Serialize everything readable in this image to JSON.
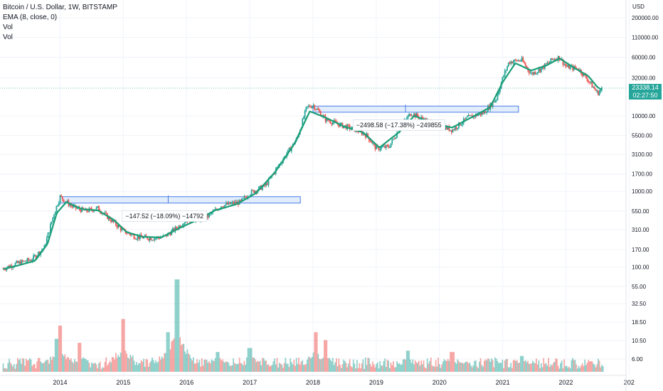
{
  "chart_data": {
    "type": "candlestick",
    "title": "Bitcoin / U.S. Dollar, 1W, BITSTAMP",
    "currency_label": "USD",
    "indicators": [
      "EMA (8, close, 0)",
      "Vol",
      "Vol"
    ],
    "price_axis_scale": "log",
    "price_ticks": [
      "200000.00",
      "110000.00",
      "60000.00",
      "32000.00",
      "10000.00",
      "5500.00",
      "3100.00",
      "1700.00",
      "1000.00",
      "550.00",
      "310.00",
      "170.00",
      "100.00",
      "55.00",
      "32.50",
      "18.50",
      "10.50",
      "6.00"
    ],
    "time_ticks": [
      "2014",
      "2015",
      "2016",
      "2017",
      "2018",
      "2019",
      "2020",
      "2021",
      "2022",
      "202"
    ],
    "last_price": "23338.14",
    "countdown": "02:27:50",
    "price_path": [
      {
        "t": 2013.1,
        "p": 95
      },
      {
        "t": 2013.3,
        "p": 110
      },
      {
        "t": 2013.55,
        "p": 125
      },
      {
        "t": 2013.75,
        "p": 180
      },
      {
        "t": 2013.9,
        "p": 500
      },
      {
        "t": 2014.0,
        "p": 850
      },
      {
        "t": 2014.2,
        "p": 620
      },
      {
        "t": 2014.4,
        "p": 550
      },
      {
        "t": 2014.6,
        "p": 600
      },
      {
        "t": 2014.8,
        "p": 420
      },
      {
        "t": 2015.0,
        "p": 300
      },
      {
        "t": 2015.2,
        "p": 250
      },
      {
        "t": 2015.45,
        "p": 240
      },
      {
        "t": 2015.65,
        "p": 250
      },
      {
        "t": 2015.85,
        "p": 330
      },
      {
        "t": 2016.0,
        "p": 420
      },
      {
        "t": 2016.3,
        "p": 440
      },
      {
        "t": 2016.55,
        "p": 650
      },
      {
        "t": 2016.85,
        "p": 720
      },
      {
        "t": 2017.0,
        "p": 950
      },
      {
        "t": 2017.25,
        "p": 1200
      },
      {
        "t": 2017.5,
        "p": 2500
      },
      {
        "t": 2017.75,
        "p": 5000
      },
      {
        "t": 2017.9,
        "p": 13000
      },
      {
        "t": 2018.0,
        "p": 14000
      },
      {
        "t": 2018.2,
        "p": 9000
      },
      {
        "t": 2018.45,
        "p": 7500
      },
      {
        "t": 2018.7,
        "p": 6500
      },
      {
        "t": 2018.85,
        "p": 5500
      },
      {
        "t": 2019.0,
        "p": 3700
      },
      {
        "t": 2019.2,
        "p": 3900
      },
      {
        "t": 2019.4,
        "p": 7500
      },
      {
        "t": 2019.55,
        "p": 11000
      },
      {
        "t": 2019.8,
        "p": 8500
      },
      {
        "t": 2020.0,
        "p": 7500
      },
      {
        "t": 2020.2,
        "p": 6500
      },
      {
        "t": 2020.45,
        "p": 9500
      },
      {
        "t": 2020.7,
        "p": 11000
      },
      {
        "t": 2020.9,
        "p": 17000
      },
      {
        "t": 2021.0,
        "p": 32000
      },
      {
        "t": 2021.1,
        "p": 52000
      },
      {
        "t": 2021.3,
        "p": 55000
      },
      {
        "t": 2021.45,
        "p": 36000
      },
      {
        "t": 2021.6,
        "p": 42000
      },
      {
        "t": 2021.8,
        "p": 57000
      },
      {
        "t": 2021.9,
        "p": 60000
      },
      {
        "t": 2022.0,
        "p": 45000
      },
      {
        "t": 2022.2,
        "p": 42000
      },
      {
        "t": 2022.35,
        "p": 30000
      },
      {
        "t": 2022.5,
        "p": 20000
      },
      {
        "t": 2022.58,
        "p": 23338
      }
    ],
    "ema_path": [
      {
        "t": 2013.1,
        "p": 93
      },
      {
        "t": 2013.35,
        "p": 105
      },
      {
        "t": 2013.6,
        "p": 120
      },
      {
        "t": 2013.8,
        "p": 200
      },
      {
        "t": 2013.95,
        "p": 520
      },
      {
        "t": 2014.1,
        "p": 720
      },
      {
        "t": 2014.35,
        "p": 580
      },
      {
        "t": 2014.6,
        "p": 560
      },
      {
        "t": 2014.85,
        "p": 420
      },
      {
        "t": 2015.05,
        "p": 290
      },
      {
        "t": 2015.3,
        "p": 250
      },
      {
        "t": 2015.6,
        "p": 245
      },
      {
        "t": 2015.9,
        "p": 330
      },
      {
        "t": 2016.15,
        "p": 410
      },
      {
        "t": 2016.45,
        "p": 560
      },
      {
        "t": 2016.8,
        "p": 680
      },
      {
        "t": 2017.1,
        "p": 950
      },
      {
        "t": 2017.4,
        "p": 1800
      },
      {
        "t": 2017.7,
        "p": 4200
      },
      {
        "t": 2017.95,
        "p": 11500
      },
      {
        "t": 2018.2,
        "p": 9500
      },
      {
        "t": 2018.5,
        "p": 7200
      },
      {
        "t": 2018.8,
        "p": 6000
      },
      {
        "t": 2019.05,
        "p": 3800
      },
      {
        "t": 2019.35,
        "p": 6000
      },
      {
        "t": 2019.6,
        "p": 10000
      },
      {
        "t": 2019.9,
        "p": 8000
      },
      {
        "t": 2020.2,
        "p": 7000
      },
      {
        "t": 2020.5,
        "p": 9500
      },
      {
        "t": 2020.8,
        "p": 13000
      },
      {
        "t": 2021.0,
        "p": 28000
      },
      {
        "t": 2021.2,
        "p": 50000
      },
      {
        "t": 2021.45,
        "p": 40000
      },
      {
        "t": 2021.7,
        "p": 47000
      },
      {
        "t": 2021.9,
        "p": 58000
      },
      {
        "t": 2022.1,
        "p": 45000
      },
      {
        "t": 2022.35,
        "p": 34000
      },
      {
        "t": 2022.5,
        "p": 24000
      },
      {
        "t": 2022.58,
        "p": 22000
      }
    ],
    "volume_peaks": [
      {
        "t": 2013.95,
        "v": 25,
        "up": true
      },
      {
        "t": 2014.0,
        "v": 35,
        "up": false
      },
      {
        "t": 2014.3,
        "v": 22,
        "up": false
      },
      {
        "t": 2015.0,
        "v": 40,
        "up": false
      },
      {
        "t": 2015.7,
        "v": 30,
        "up": true
      },
      {
        "t": 2015.85,
        "v": 70,
        "up": true
      },
      {
        "t": 2016.5,
        "v": 15,
        "up": true
      },
      {
        "t": 2017.0,
        "v": 18,
        "up": true
      },
      {
        "t": 2018.05,
        "v": 30,
        "up": false
      },
      {
        "t": 2018.2,
        "v": 24,
        "up": false
      },
      {
        "t": 2019.5,
        "v": 16,
        "up": true
      },
      {
        "t": 2020.2,
        "v": 15,
        "up": false
      },
      {
        "t": 2021.3,
        "v": 12,
        "up": true
      },
      {
        "t": 2022.4,
        "v": 8,
        "up": false
      }
    ],
    "rectangles": [
      {
        "t0": 2014.0,
        "t1": 2017.8,
        "p_top": 850,
        "p_bottom": 700
      },
      {
        "t0": 2018.0,
        "t1": 2021.25,
        "p_top": 13500,
        "p_bottom": 11200
      }
    ],
    "measure_labels": [
      {
        "text": "−147.52 (−18.09%) −14792",
        "t": 2015.45,
        "p": 470
      },
      {
        "text": "−2498.58 (−17.38%) −249855",
        "t": 2019.1,
        "p": 7600
      }
    ],
    "colors": {
      "up": "#26a69a",
      "down": "#ef5350",
      "ema": "#1b9e77",
      "rect_fill": "#dbe8fb",
      "rect_stroke": "#4a7de8",
      "last_price_badge": "#26a69a"
    }
  }
}
